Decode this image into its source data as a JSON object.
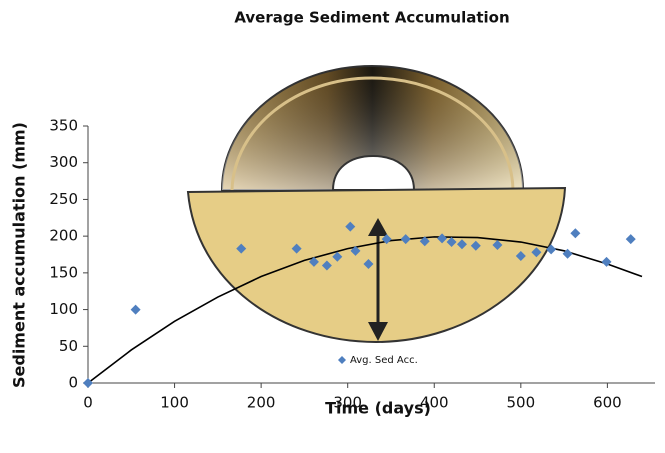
{
  "chart_data": {
    "type": "scatter",
    "title": "Average Sediment Accumulation",
    "x_label": "Time (days)",
    "y_label": "Sediment accumulation (mm)",
    "series": [
      {
        "name": "Avg. Sed Acc.",
        "color": "#4f7fbf",
        "x": [
          0,
          55,
          177,
          241,
          261,
          276,
          288,
          303,
          309,
          324,
          345,
          367,
          389,
          409,
          420,
          432,
          448,
          473,
          500,
          518,
          535,
          554,
          563,
          599,
          627
        ],
        "values": [
          0,
          100,
          183,
          183,
          165,
          160,
          172,
          213,
          180,
          162,
          196,
          196,
          193,
          197,
          192,
          189,
          187,
          188,
          173,
          178,
          182,
          176,
          204,
          165,
          196
        ]
      }
    ],
    "trendline": {
      "color": "#000000",
      "x": [
        0,
        50,
        100,
        150,
        200,
        250,
        300,
        350,
        400,
        450,
        500,
        550,
        600,
        640
      ],
      "values": [
        0,
        45,
        84,
        117,
        145,
        167,
        183,
        194,
        199,
        198,
        192,
        180,
        162,
        145
      ]
    },
    "xlim": [
      0,
      655
    ],
    "xticks": [
      0,
      100,
      200,
      300,
      400,
      500,
      600
    ],
    "ylim": [
      0,
      350
    ],
    "yticks": [
      0,
      50,
      100,
      150,
      200,
      250,
      300,
      350
    ],
    "legend": "inside-bottom"
  }
}
